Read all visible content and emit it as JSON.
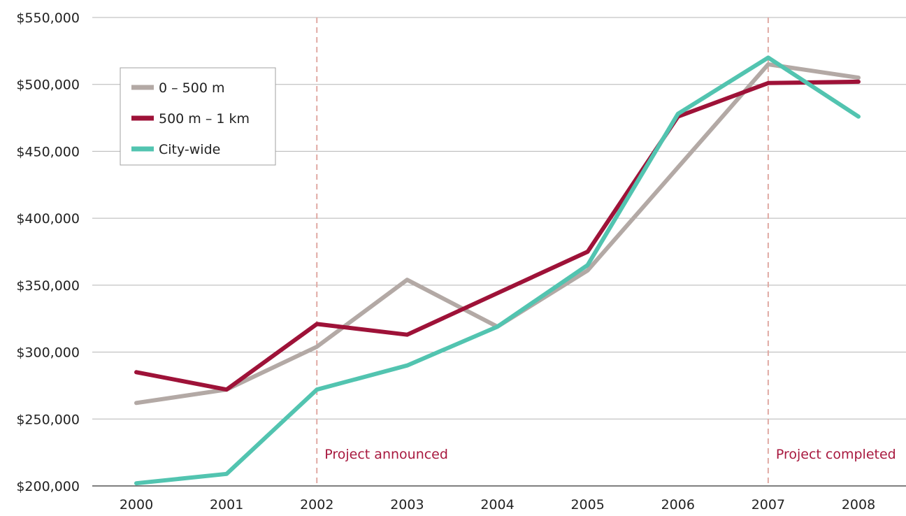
{
  "chart_data": {
    "type": "line",
    "categories": [
      "2000",
      "2001",
      "2002",
      "2003",
      "2004",
      "2005",
      "2006",
      "2007",
      "2008"
    ],
    "series": [
      {
        "name": "0 – 500 m",
        "color": "#b3a9a5",
        "values": [
          262000,
          272000,
          304000,
          354000,
          319000,
          361000,
          438000,
          515000,
          505000
        ]
      },
      {
        "name": "500 m – 1 km",
        "color": "#9e1238",
        "values": [
          285000,
          272000,
          321000,
          313000,
          344000,
          375000,
          476000,
          501000,
          502000
        ]
      },
      {
        "name": "City-wide",
        "color": "#52c4b0",
        "values": [
          202000,
          209000,
          272000,
          290000,
          319000,
          365000,
          478000,
          520000,
          476000
        ]
      }
    ],
    "ylim": [
      200000,
      550000
    ],
    "yticks": [
      200000,
      250000,
      300000,
      350000,
      400000,
      450000,
      500000,
      550000
    ],
    "ytick_labels": [
      "$200,000",
      "$250,000",
      "$300,000",
      "$350,000",
      "$400,000",
      "$450,000",
      "$500,000",
      "$550,000"
    ],
    "grid": "horizontal",
    "legend_position": "top-left",
    "annotations": [
      {
        "x": "2002",
        "label": "Project announced",
        "color": "#a8193f",
        "line_color": "#e0a9a3"
      },
      {
        "x": "2007",
        "label": "Project completed",
        "color": "#a8193f",
        "line_color": "#e0a9a3"
      }
    ]
  }
}
